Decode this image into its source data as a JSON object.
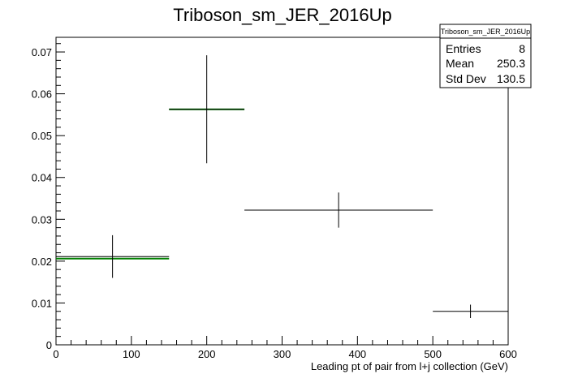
{
  "chart_data": {
    "type": "scatter",
    "title": "Triboson_sm_JER_2016Up",
    "xlabel": "Leading pt of pair from l+j collection (GeV)",
    "ylabel": "",
    "xlim": [
      0,
      600
    ],
    "ylim": [
      0,
      0.0735
    ],
    "x_ticks": [
      0,
      100,
      200,
      300,
      400,
      500,
      600
    ],
    "y_ticks": [
      0,
      0.01,
      0.02,
      0.03,
      0.04,
      0.05,
      0.06,
      0.07
    ],
    "grid": false,
    "series": [
      {
        "style": "error-bars",
        "color": "#000000",
        "points": [
          {
            "x": 75,
            "x_low": 0,
            "x_high": 150,
            "y": 0.0211,
            "y_err": 0.0051
          },
          {
            "x": 200,
            "x_low": 150,
            "x_high": 250,
            "y": 0.0563,
            "y_err": 0.0129
          },
          {
            "x": 375,
            "x_low": 250,
            "x_high": 500,
            "y": 0.0322,
            "y_err": 0.0042
          },
          {
            "x": 550,
            "x_low": 500,
            "x_high": 600,
            "y": 0.008,
            "y_err": 0.0016
          }
        ]
      },
      {
        "style": "histogram",
        "color": "#008000",
        "bins": [
          {
            "x_low": 0,
            "x_high": 150,
            "y": 0.0206
          },
          {
            "x_low": 150,
            "x_high": 250,
            "y": 0.0563
          }
        ]
      }
    ],
    "stats_box": {
      "title": "Triboson_sm_JER_2016Up",
      "position": "top-right",
      "rows": [
        {
          "label": "Entries",
          "value": "8"
        },
        {
          "label": "Mean",
          "value": "250.3"
        },
        {
          "label": "Std Dev",
          "value": "130.5"
        }
      ]
    }
  }
}
